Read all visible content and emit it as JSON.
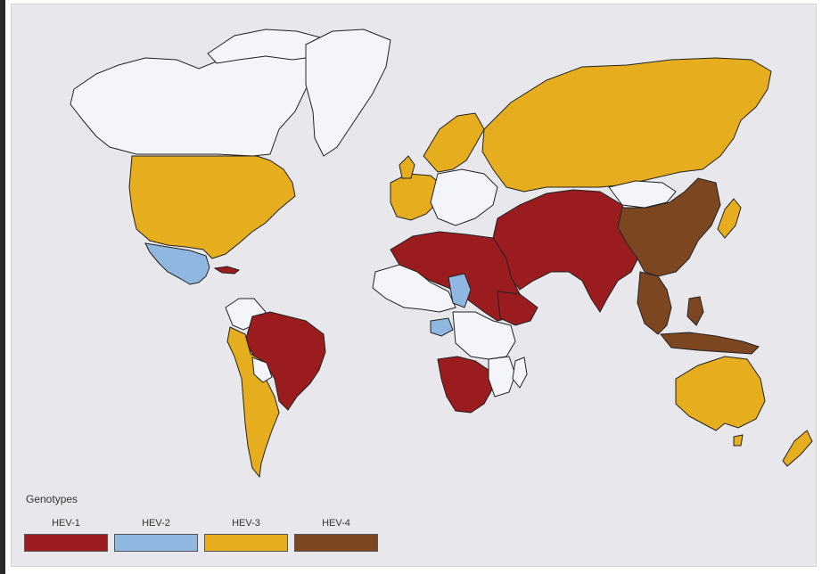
{
  "colors": {
    "ocean": "#e8e8ec",
    "no_data": "#f4f5f8",
    "hev1": "#9b1c1f",
    "hev2": "#8fb7e0",
    "hev3": "#e6ae1e",
    "hev4": "#7b4620",
    "border": "#222222"
  },
  "legend": {
    "title": "Genotypes",
    "items": [
      {
        "label": "HEV-1",
        "color": "#9b1c1f"
      },
      {
        "label": "HEV-2",
        "color": "#8fb7e0"
      },
      {
        "label": "HEV-3",
        "color": "#e6ae1e"
      },
      {
        "label": "HEV-4",
        "color": "#7b4620"
      }
    ]
  }
}
